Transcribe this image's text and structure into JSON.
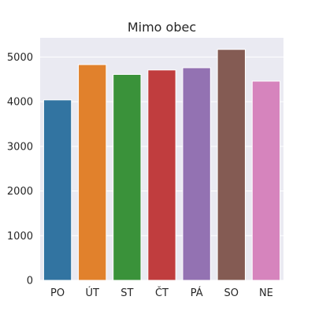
{
  "chart_data": {
    "type": "bar",
    "title": "Mimo obec",
    "xlabel": "",
    "ylabel": "",
    "categories": [
      "PO",
      "ÚT",
      "ST",
      "ČT",
      "PÁ",
      "SO",
      "NE"
    ],
    "values": [
      4040,
      4830,
      4610,
      4710,
      4760,
      5170,
      4460
    ],
    "colors": [
      "#3274a1",
      "#e1812c",
      "#3a923a",
      "#c03d3e",
      "#9372b2",
      "#845b53",
      "#d684bd"
    ],
    "ylim": [
      0,
      5430
    ],
    "yticks": [
      0,
      1000,
      2000,
      3000,
      4000,
      5000
    ],
    "grid": true,
    "background": "#eaeaf2",
    "grid_color": "#ffffff"
  }
}
